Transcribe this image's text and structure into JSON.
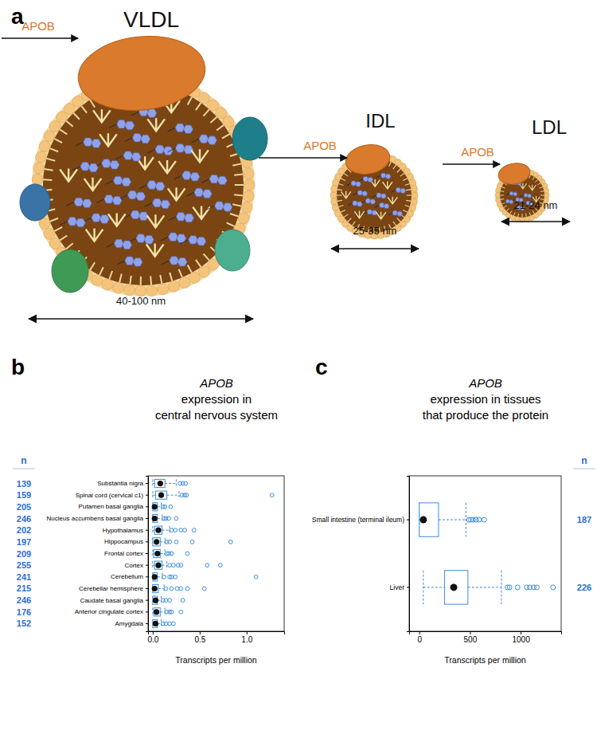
{
  "diagram": {
    "label": "a",
    "particles": [
      {
        "name": "VLDL",
        "protein": "APOB",
        "size": "40-100 nm"
      },
      {
        "name": "IDL",
        "protein": "APOB",
        "size": "25-35 nm"
      },
      {
        "name": "LDL",
        "protein": "APOB",
        "size": "21-24 nm"
      }
    ]
  },
  "chart_data": [
    {
      "type": "box",
      "label": "b",
      "title": [
        "APOB",
        "expression in",
        "central nervous system"
      ],
      "x_label": "Transcripts per million",
      "orientation": "horizontal",
      "color": "#3b8ee0",
      "categories": [
        "Substantia nigra",
        "Spinal cord (cervical c1)",
        "Putamen basal ganglia",
        "Nucleus accumbens basal ganglia",
        "Hypothalamus",
        "Hippocampus",
        "Frontal cortex",
        "Cortex",
        "Cerebellum",
        "Cerebellar hemisphere",
        "Caudate basal ganglia",
        "Anterior cingulate cortex",
        "Amygdala"
      ],
      "n_label": "n",
      "n": [
        139,
        159,
        205,
        246,
        202,
        197,
        209,
        255,
        241,
        215,
        246,
        176,
        152
      ],
      "boxes": [
        {
          "min": 0,
          "q1": 0.02,
          "median": 0.08,
          "q3": 0.13,
          "max": 0.25,
          "outliers": [
            0.29,
            0.32,
            0.35
          ]
        },
        {
          "min": 0,
          "q1": 0.03,
          "median": 0.09,
          "q3": 0.15,
          "max": 0.28,
          "outliers": [
            0.31,
            0.34,
            0.36,
            1.27
          ]
        },
        {
          "min": 0,
          "q1": 0,
          "median": 0.02,
          "q3": 0.05,
          "max": 0.09,
          "outliers": [
            0.11,
            0.13,
            0.19
          ]
        },
        {
          "min": 0,
          "q1": 0,
          "median": 0.02,
          "q3": 0.05,
          "max": 0.1,
          "outliers": [
            0.12,
            0.14,
            0.17,
            0.25
          ]
        },
        {
          "min": 0,
          "q1": 0.02,
          "median": 0.06,
          "q3": 0.1,
          "max": 0.18,
          "outliers": [
            0.2,
            0.24,
            0.3,
            0.34,
            0.44
          ]
        },
        {
          "min": 0,
          "q1": 0,
          "median": 0.04,
          "q3": 0.08,
          "max": 0.13,
          "outliers": [
            0.15,
            0.18,
            0.25,
            0.42,
            0.83
          ]
        },
        {
          "min": 0,
          "q1": 0.01,
          "median": 0.05,
          "q3": 0.08,
          "max": 0.13,
          "outliers": [
            0.15,
            0.17,
            0.2,
            0.37
          ]
        },
        {
          "min": 0,
          "q1": 0.02,
          "median": 0.06,
          "q3": 0.1,
          "max": 0.15,
          "outliers": [
            0.18,
            0.22,
            0.27,
            0.3,
            0.58,
            0.72
          ]
        },
        {
          "min": 0,
          "q1": 0,
          "median": 0.02,
          "q3": 0.05,
          "max": 0.1,
          "outliers": [
            0.12,
            0.18,
            0.2,
            0.24,
            1.1
          ]
        },
        {
          "min": 0,
          "q1": 0,
          "median": 0.02,
          "q3": 0.06,
          "max": 0.12,
          "outliers": [
            0.14,
            0.2,
            0.26,
            0.3,
            0.37,
            0.55
          ]
        },
        {
          "min": 0,
          "q1": 0,
          "median": 0.03,
          "q3": 0.05,
          "max": 0.09,
          "outliers": [
            0.11,
            0.14,
            0.18,
            0.32
          ]
        },
        {
          "min": 0,
          "q1": 0.01,
          "median": 0.04,
          "q3": 0.08,
          "max": 0.13,
          "outliers": [
            0.15,
            0.18,
            0.2,
            0.3
          ]
        },
        {
          "min": 0,
          "q1": 0,
          "median": 0.03,
          "q3": 0.05,
          "max": 0.09,
          "outliers": [
            0.11,
            0.14,
            0.18,
            0.22
          ]
        }
      ],
      "xlim": [
        -0.05,
        1.4
      ],
      "xticks": [
        {
          "value": 0,
          "label": "0.0"
        },
        {
          "value": 0.5,
          "label": "0.5"
        },
        {
          "value": 1,
          "label": "1.0"
        }
      ]
    },
    {
      "type": "box",
      "label": "c",
      "title": [
        "APOB",
        "expression in tissues",
        "that produce the protein"
      ],
      "x_label": "Transcripts per million",
      "orientation": "horizontal",
      "color": "#3b8ee0",
      "categories": [
        "Small intestine (terminal ileum)",
        "Liver"
      ],
      "n_label": "n",
      "n": [
        187,
        226
      ],
      "boxes": [
        {
          "min": 0,
          "q1": 0,
          "median": 40,
          "q3": 190,
          "max": 460,
          "outliers": [
            490,
            510,
            530,
            560,
            590,
            640
          ]
        },
        {
          "min": 40,
          "q1": 250,
          "median": 340,
          "q3": 480,
          "max": 810,
          "outliers": [
            870,
            890,
            970,
            1060,
            1090,
            1130,
            1160,
            1320
          ]
        }
      ],
      "xlim": [
        -100,
        1400
      ],
      "xticks": [
        0,
        500,
        1000
      ]
    }
  ]
}
